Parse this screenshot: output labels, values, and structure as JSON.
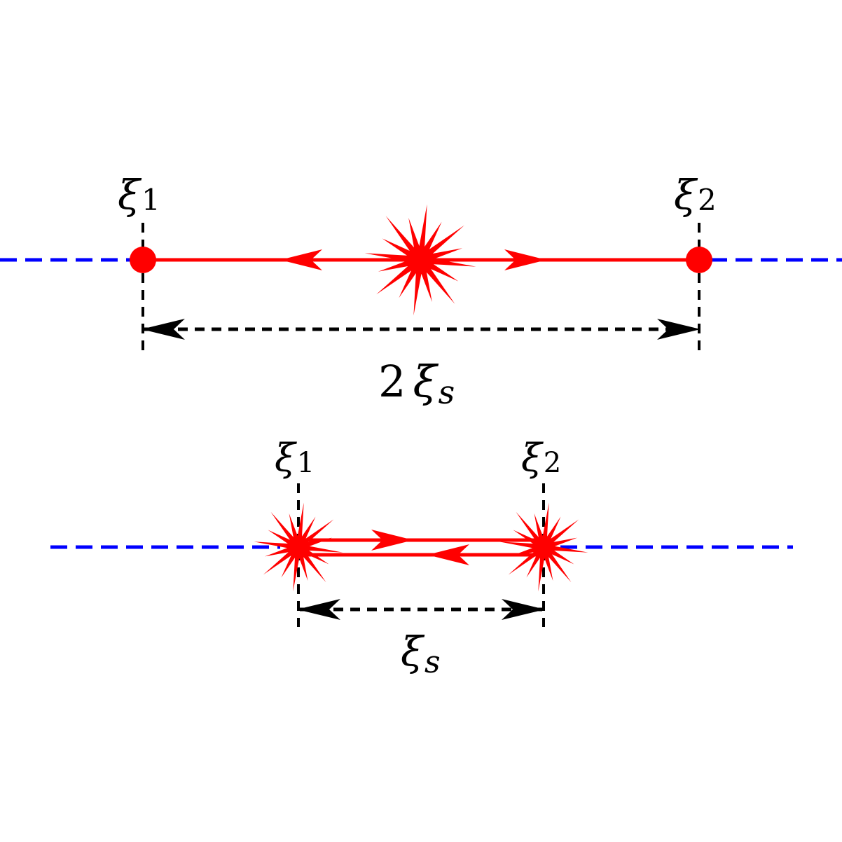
{
  "colors": {
    "baseline": "#0000ff",
    "path": "#ff0000",
    "guide": "#000000",
    "background": "#ffffff"
  },
  "top": {
    "xi1": {
      "sym": "ξ",
      "sub": "1"
    },
    "xi2": {
      "sym": "ξ",
      "sub": "2"
    },
    "distance": {
      "coef": "2",
      "sym": "ξ",
      "sub": "s"
    },
    "endpoints": [
      "circle-marker",
      "circle-marker"
    ],
    "source": "starburst-icon"
  },
  "bottom": {
    "xi1": {
      "sym": "ξ",
      "sub": "1"
    },
    "xi2": {
      "sym": "ξ",
      "sub": "2"
    },
    "distance": {
      "sym": "ξ",
      "sub": "s"
    },
    "sources": [
      "starburst-icon",
      "starburst-icon"
    ]
  }
}
